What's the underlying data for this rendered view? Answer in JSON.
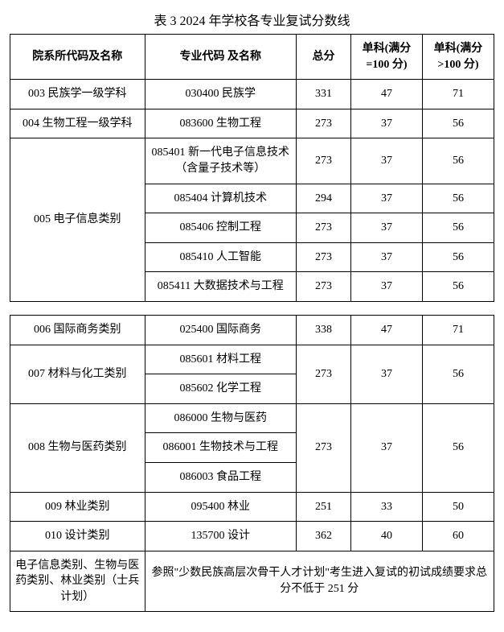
{
  "title": "表 3  2024 年学校各专业复试分数线",
  "headers": {
    "dept": "院系所代码及名称",
    "major": "专业代码\n及名称",
    "total": "总分",
    "sub100": "单科(满分=100 分)",
    "subgt100": "单科(满分>100 分)"
  },
  "group1": [
    {
      "dept": "003 民族学一级学科",
      "major": "030400 民族学",
      "total": "331",
      "s1": "47",
      "s2": "71"
    },
    {
      "dept": "004 生物工程一级学科",
      "major": "083600 生物工程",
      "total": "273",
      "s1": "37",
      "s2": "56"
    }
  ],
  "dept005": "005 电子信息类别",
  "majors005": [
    {
      "major": "085401 新一代电子信息技术（含量子技术等）",
      "total": "273",
      "s1": "37",
      "s2": "56"
    },
    {
      "major": "085404 计算机技术",
      "total": "294",
      "s1": "37",
      "s2": "56"
    },
    {
      "major": "085406 控制工程",
      "total": "273",
      "s1": "37",
      "s2": "56"
    },
    {
      "major": "085410 人工智能",
      "total": "273",
      "s1": "37",
      "s2": "56"
    },
    {
      "major": "085411 大数据技术与工程",
      "total": "273",
      "s1": "37",
      "s2": "56"
    }
  ],
  "row006": {
    "dept": "006 国际商务类别",
    "major": "025400 国际商务",
    "total": "338",
    "s1": "47",
    "s2": "71"
  },
  "dept007": "007 材料与化工类别",
  "majors007": {
    "m1": "085601 材料工程",
    "m2": "085602 化学工程",
    "total": "273",
    "s1": "37",
    "s2": "56"
  },
  "dept008": "008 生物与医药类别",
  "majors008": {
    "m1": "086000 生物与医药",
    "m2": "086001 生物技术与工程",
    "m3": "086003 食品工程",
    "total": "273",
    "s1": "37",
    "s2": "56"
  },
  "row009": {
    "dept": "009 林业类别",
    "major": "095400 林业",
    "total": "251",
    "s1": "33",
    "s2": "50"
  },
  "row010": {
    "dept": "010 设计类别",
    "major": "135700 设计",
    "total": "362",
    "s1": "40",
    "s2": "60"
  },
  "footer": {
    "left": "电子信息类别、生物与医药类别、林业类别（士兵计划）",
    "right": "参照\"少数民族高层次骨干人才计划\"考生进入复试的初试成绩要求总分不低于 251 分"
  }
}
